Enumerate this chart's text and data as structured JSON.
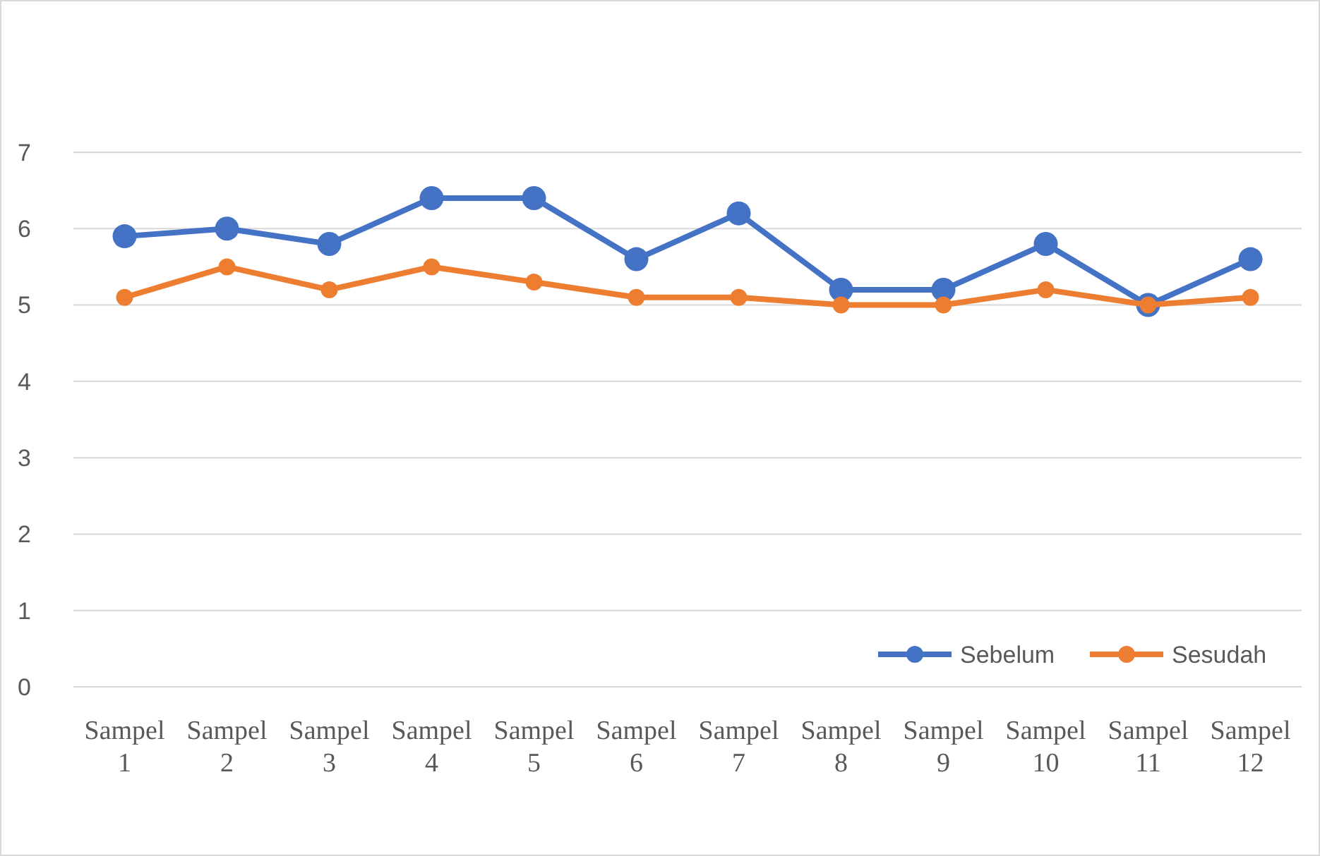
{
  "chart_data": {
    "type": "line",
    "categories": [
      "Sampel 1",
      "Sampel 2",
      "Sampel 3",
      "Sampel 4",
      "Sampel 5",
      "Sampel 6",
      "Sampel 7",
      "Sampel 8",
      "Sampel 9",
      "Sampel 10",
      "Sampel 11",
      "Sampel 12"
    ],
    "series": [
      {
        "name": "Sebelum",
        "color": "#4472c4",
        "values": [
          5.9,
          6.0,
          5.8,
          6.4,
          6.4,
          5.6,
          6.2,
          5.2,
          5.2,
          5.8,
          5.0,
          5.6
        ]
      },
      {
        "name": "Sesudah",
        "color": "#ed7d31",
        "values": [
          5.1,
          5.5,
          5.2,
          5.5,
          5.3,
          5.1,
          5.1,
          5.0,
          5.0,
          5.2,
          5.0,
          5.1
        ]
      }
    ],
    "ylim": [
      0,
      7
    ],
    "yticks": [
      0,
      1,
      2,
      3,
      4,
      5,
      6,
      7
    ],
    "grid": "y",
    "legend": "bottom right",
    "marker": "circle",
    "line_style": "solid"
  }
}
